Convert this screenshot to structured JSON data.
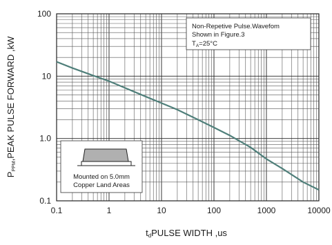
{
  "chart_data": {
    "type": "line",
    "x_scale": "log",
    "y_scale": "log",
    "xlim": [
      0.1,
      10000
    ],
    "ylim": [
      0.1,
      100
    ],
    "x_ticks": [
      "0.1",
      "1",
      "10",
      "100",
      "1000",
      "10000"
    ],
    "y_ticks": [
      "0.1",
      "1.0",
      "10",
      "100"
    ],
    "xlabel_main": "t",
    "xlabel_sub": "d",
    "xlabel_rest": "PULSE WIDTH ,us",
    "ylabel_main": "P",
    "ylabel_sub": "PPM",
    "ylabel_rest": ",PEAK PULSE  FORWARD ,kW",
    "grid": true,
    "series": [
      {
        "color": "#4f7f7a",
        "x": [
          0.1,
          0.2,
          0.5,
          1,
          2,
          5,
          10,
          20,
          50,
          100,
          200,
          500,
          1000,
          2000,
          5000,
          10000
        ],
        "y": [
          17,
          13.5,
          10.2,
          8.3,
          6.5,
          4.7,
          3.7,
          2.9,
          2.0,
          1.5,
          1.12,
          0.72,
          0.47,
          0.33,
          0.2,
          0.15
        ]
      }
    ],
    "annotation": {
      "line1": "Non-Repetive  Pulse.Wavefom",
      "line2": "Shown in Figure.3",
      "line3_main": "T",
      "line3_sub": "A",
      "line3_rest": "=25°C"
    },
    "inset": {
      "line1": "Mounted on 5.0mm",
      "line2": "Copper Land Areas",
      "icon": "smd-package-icon"
    }
  }
}
